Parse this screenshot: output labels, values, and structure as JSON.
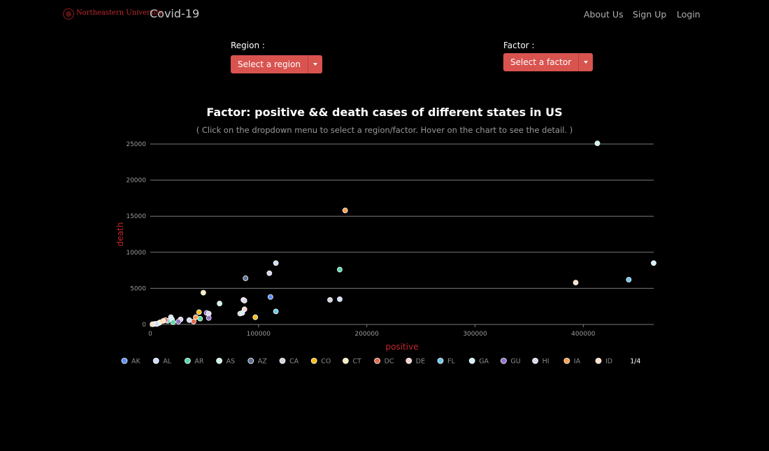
{
  "navbar": {
    "brand": "Northeastern University",
    "title": "Covid-19",
    "links": [
      "About Us",
      "Sign Up",
      "Login"
    ]
  },
  "controls": {
    "region_label": "Region :",
    "region_button": "Select a region",
    "factor_label": "Factor :",
    "factor_button": "Select a factor"
  },
  "chart": {
    "title": "Factor: positive && death cases of different states in US",
    "subtitle": "( Click on the dropdown menu to select a region/factor. Hover on the chart to see the detail. )"
  },
  "colors": {
    "accent": "#d9534f",
    "axis_title": "#c0282e",
    "grid": "#7a7a7a"
  },
  "chart_data": {
    "type": "scatter",
    "xlabel": "positive",
    "ylabel": "death",
    "xlim": [
      0,
      465000
    ],
    "ylim": [
      0,
      25000
    ],
    "x_ticks": [
      0,
      100000,
      200000,
      300000,
      400000
    ],
    "y_ticks": [
      0,
      5000,
      10000,
      15000,
      20000,
      25000
    ],
    "grid": true,
    "legend_position": "bottom",
    "legend_page": "1/4",
    "series": [
      {
        "name": "AK",
        "color": "#5b8ff9"
      },
      {
        "name": "AL",
        "color": "#cdddfd"
      },
      {
        "name": "AR",
        "color": "#5ad8a6"
      },
      {
        "name": "AS",
        "color": "#cdf3e4"
      },
      {
        "name": "AZ",
        "color": "#5d7092"
      },
      {
        "name": "CA",
        "color": "#ced4de"
      },
      {
        "name": "CO",
        "color": "#f6bd16"
      },
      {
        "name": "CT",
        "color": "#fcebb9"
      },
      {
        "name": "DC",
        "color": "#e8684a"
      },
      {
        "name": "DE",
        "color": "#f8d0cb"
      },
      {
        "name": "FL",
        "color": "#6dc8ec"
      },
      {
        "name": "GA",
        "color": "#d3eef9"
      },
      {
        "name": "GU",
        "color": "#9270ca"
      },
      {
        "name": "HI",
        "color": "#ded4ed"
      },
      {
        "name": "IA",
        "color": "#ff9d4d"
      },
      {
        "name": "ID",
        "color": "#ffe0c7"
      }
    ],
    "points": [
      {
        "x": 413000,
        "y": 25100,
        "color": "#cdf3e4"
      },
      {
        "x": 180000,
        "y": 15800,
        "color": "#ff9d4d"
      },
      {
        "x": 465000,
        "y": 8500,
        "color": "#d3eef9"
      },
      {
        "x": 116000,
        "y": 8500,
        "color": "#cdddfd"
      },
      {
        "x": 110000,
        "y": 7100,
        "color": "#ded4ed"
      },
      {
        "x": 175000,
        "y": 7600,
        "color": "#5ad8a6"
      },
      {
        "x": 88000,
        "y": 6400,
        "color": "#5d7092"
      },
      {
        "x": 393000,
        "y": 5800,
        "color": "#ffe0c7"
      },
      {
        "x": 442000,
        "y": 6200,
        "color": "#6dc8ec"
      },
      {
        "x": 49000,
        "y": 4400,
        "color": "#fcebb9"
      },
      {
        "x": 111000,
        "y": 3800,
        "color": "#5b8ff9"
      },
      {
        "x": 166000,
        "y": 3400,
        "color": "#ced4de"
      },
      {
        "x": 175000,
        "y": 3500,
        "color": "#cdddfd"
      },
      {
        "x": 86000,
        "y": 3400,
        "color": "#f8d0cb"
      },
      {
        "x": 87000,
        "y": 3300,
        "color": "#ded4ed"
      },
      {
        "x": 64000,
        "y": 2900,
        "color": "#cdf3e4"
      },
      {
        "x": 87000,
        "y": 2100,
        "color": "#f8d0cb"
      },
      {
        "x": 116000,
        "y": 1800,
        "color": "#6dc8ec"
      },
      {
        "x": 83000,
        "y": 1500,
        "color": "#ced4de"
      },
      {
        "x": 85000,
        "y": 1600,
        "color": "#d3eef9"
      },
      {
        "x": 45000,
        "y": 1700,
        "color": "#f6bd16"
      },
      {
        "x": 52000,
        "y": 1600,
        "color": "#9270ca"
      },
      {
        "x": 54000,
        "y": 1500,
        "color": "#ded4ed"
      },
      {
        "x": 54000,
        "y": 900,
        "color": "#9270ca"
      },
      {
        "x": 46000,
        "y": 800,
        "color": "#5ad8a6"
      },
      {
        "x": 42000,
        "y": 1000,
        "color": "#ff9d4d"
      },
      {
        "x": 97000,
        "y": 1000,
        "color": "#f6bd16"
      },
      {
        "x": 36000,
        "y": 600,
        "color": "#cdddfd"
      },
      {
        "x": 28000,
        "y": 700,
        "color": "#ded4ed"
      },
      {
        "x": 40000,
        "y": 400,
        "color": "#e8684a"
      },
      {
        "x": 26000,
        "y": 400,
        "color": "#9270ca"
      },
      {
        "x": 19000,
        "y": 1000,
        "color": "#cdddfd"
      },
      {
        "x": 20000,
        "y": 700,
        "color": "#d3eef9"
      },
      {
        "x": 21000,
        "y": 300,
        "color": "#5ad8a6"
      },
      {
        "x": 16000,
        "y": 500,
        "color": "#6dc8ec"
      },
      {
        "x": 14000,
        "y": 600,
        "color": "#e8684a"
      },
      {
        "x": 12000,
        "y": 500,
        "color": "#ffe0c7"
      },
      {
        "x": 9000,
        "y": 300,
        "color": "#ff9d4d"
      },
      {
        "x": 8000,
        "y": 200,
        "color": "#fcebb9"
      },
      {
        "x": 5000,
        "y": 100,
        "color": "#cdf3e4"
      },
      {
        "x": 3000,
        "y": 50,
        "color": "#ced4de"
      },
      {
        "x": 2000,
        "y": 30,
        "color": "#ffe0c7"
      },
      {
        "x": 6000,
        "y": 60,
        "color": "#cdddfd"
      }
    ]
  }
}
